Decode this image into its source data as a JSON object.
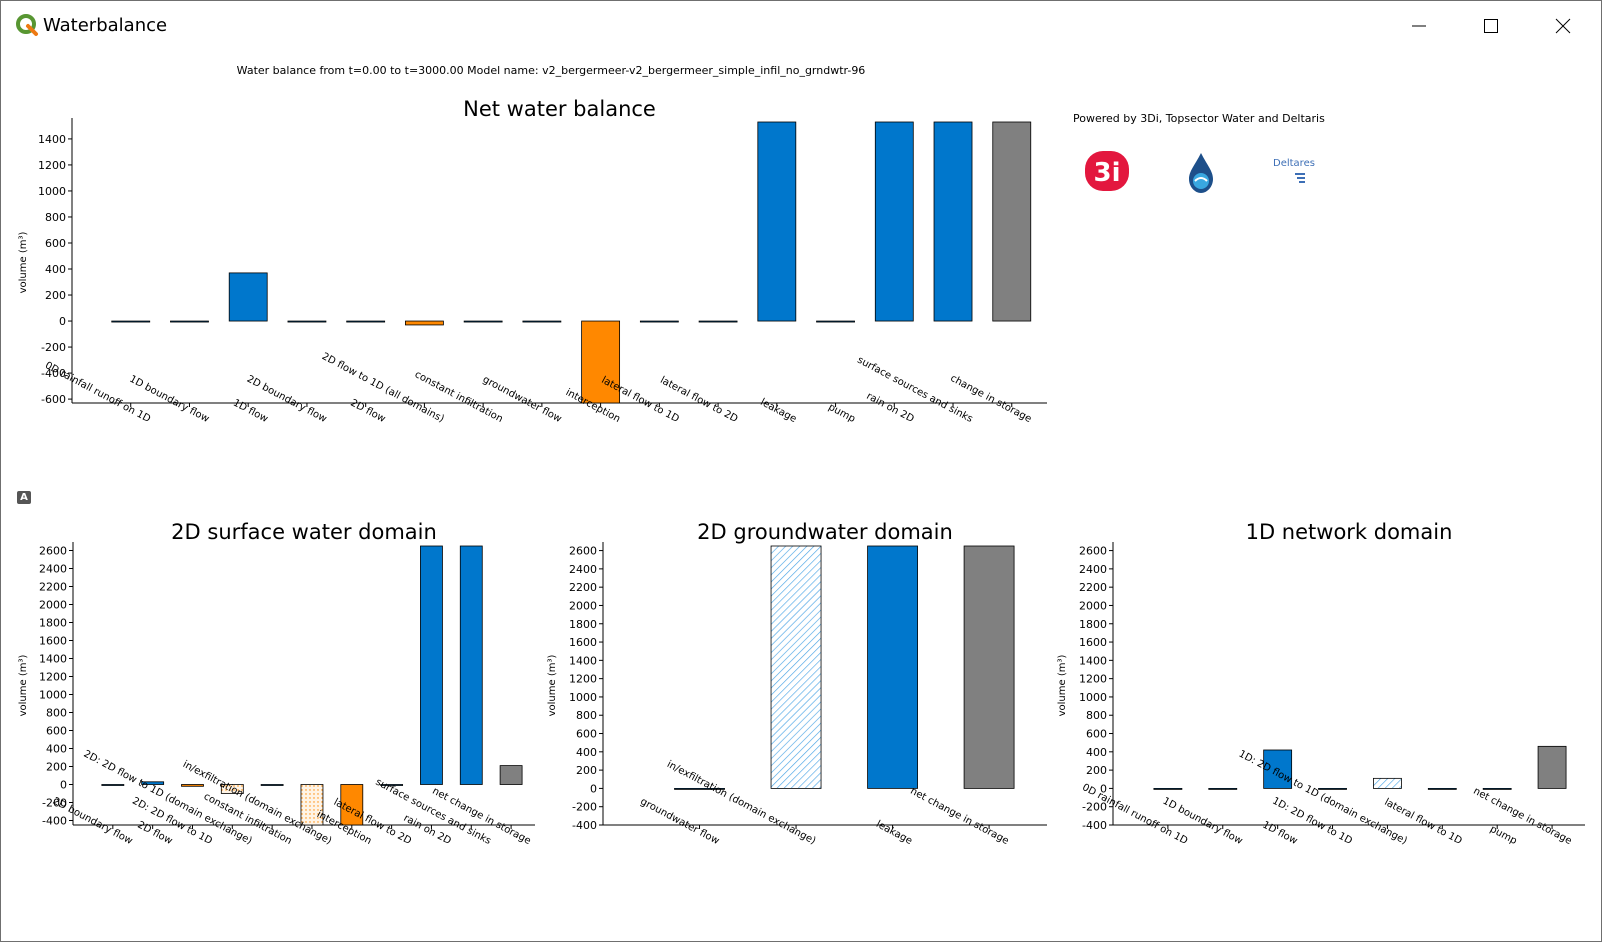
{
  "window": {
    "title": "Waterbalance"
  },
  "subtitle": "Water balance from t=0.00 to t=3000.00 Model name: v2_bergermeer-v2_bergermeer_simple_infil_no_grndwtr-96",
  "powered_by": "Powered by 3Di, Topsector Water and Deltaris",
  "logos": {
    "threedi": "3i",
    "deltares": "Deltares"
  },
  "small_badge": "A",
  "colors": {
    "inflow": "#0077cc",
    "outflow": "#ff8800",
    "storage": "#808080",
    "hatch": "#4da6e6"
  },
  "chart_data": [
    {
      "id": "net",
      "type": "bar",
      "title": "Net water balance",
      "ylabel": "volume (m³)",
      "ylim": [
        -630,
        1530
      ],
      "yticks": [
        -600,
        -400,
        -200,
        0,
        200,
        400,
        600,
        800,
        1000,
        1200,
        1400
      ],
      "categories": [
        "0D rainfall runoff on 1D",
        "1D boundary flow",
        "1D flow",
        "2D boundary flow",
        "2D flow",
        "2D flow to 1D (all domains)",
        "constant infiltration",
        "groundwater flow",
        "interception",
        "lateral flow to 1D",
        "lateral flow to 2D",
        "leakage",
        "pump",
        "rain on 2D",
        "surface sources and sinks",
        "change in storage"
      ],
      "values": [
        0,
        0,
        370,
        0,
        0,
        -30,
        0,
        0,
        -630,
        0,
        0,
        1530,
        0,
        1530,
        1530,
        1530
      ],
      "bar_colors": [
        "inflow",
        "inflow",
        "inflow",
        "inflow",
        "inflow",
        "outflow",
        "inflow",
        "inflow",
        "outflow",
        "inflow",
        "inflow",
        "inflow",
        "inflow",
        "inflow",
        "inflow",
        "storage"
      ]
    },
    {
      "id": "surface",
      "type": "bar",
      "title": "2D surface water domain",
      "ylabel": "volume (m³)",
      "ylim": [
        -450,
        2650
      ],
      "yticks": [
        -400,
        -200,
        0,
        200,
        400,
        600,
        800,
        1000,
        1200,
        1400,
        1600,
        1800,
        2000,
        2200,
        2400,
        2600
      ],
      "categories": [
        "2D boundary flow",
        "2D flow",
        "2D: 2D flow to 1D",
        "2D: 2D flow to 1D (domain exchange)",
        "constant infiltration",
        "in/exfiltration (domain exchange)",
        "interception",
        "lateral flow to 2D",
        "rain on 2D",
        "surface sources and sinks",
        "net change in storage"
      ],
      "values": [
        0,
        30,
        -20,
        -100,
        0,
        -450,
        -450,
        0,
        2650,
        2650,
        210
      ],
      "bar_colors": [
        "inflow",
        "inflow",
        "outflow",
        "inflow",
        "inflow",
        "outflow",
        "outflow",
        "inflow",
        "inflow",
        "inflow",
        "storage"
      ]
    },
    {
      "id": "groundwater",
      "type": "bar",
      "title": "2D groundwater domain",
      "ylabel": "volume (m³)",
      "ylim": [
        -400,
        2650
      ],
      "yticks": [
        -400,
        -200,
        0,
        200,
        400,
        600,
        800,
        1000,
        1200,
        1400,
        1600,
        1800,
        2000,
        2200,
        2400,
        2600
      ],
      "categories": [
        "groundwater flow",
        "in/exfiltration (domain exchange)",
        "leakage",
        "net change in storage"
      ],
      "values": [
        0,
        2650,
        2650,
        2650
      ],
      "bar_colors": [
        "inflow",
        "inflow",
        "inflow",
        "storage"
      ]
    },
    {
      "id": "network",
      "type": "bar",
      "title": "1D network domain",
      "ylabel": "volume (m³)",
      "ylim": [
        -400,
        2650
      ],
      "yticks": [
        -400,
        -200,
        0,
        200,
        400,
        600,
        800,
        1000,
        1200,
        1400,
        1600,
        1800,
        2000,
        2200,
        2400,
        2600
      ],
      "categories": [
        "0D rainfall runoff on 1D",
        "1D boundary flow",
        "1D flow",
        "1D: 2D flow to 1D",
        "1D: 2D flow to 1D (domain exchange)",
        "lateral flow to 1D",
        "pump",
        "net change in storage"
      ],
      "values": [
        0,
        0,
        420,
        0,
        110,
        0,
        0,
        460
      ],
      "bar_colors": [
        "inflow",
        "inflow",
        "inflow",
        "inflow",
        "inflow",
        "inflow",
        "inflow",
        "storage"
      ]
    }
  ]
}
